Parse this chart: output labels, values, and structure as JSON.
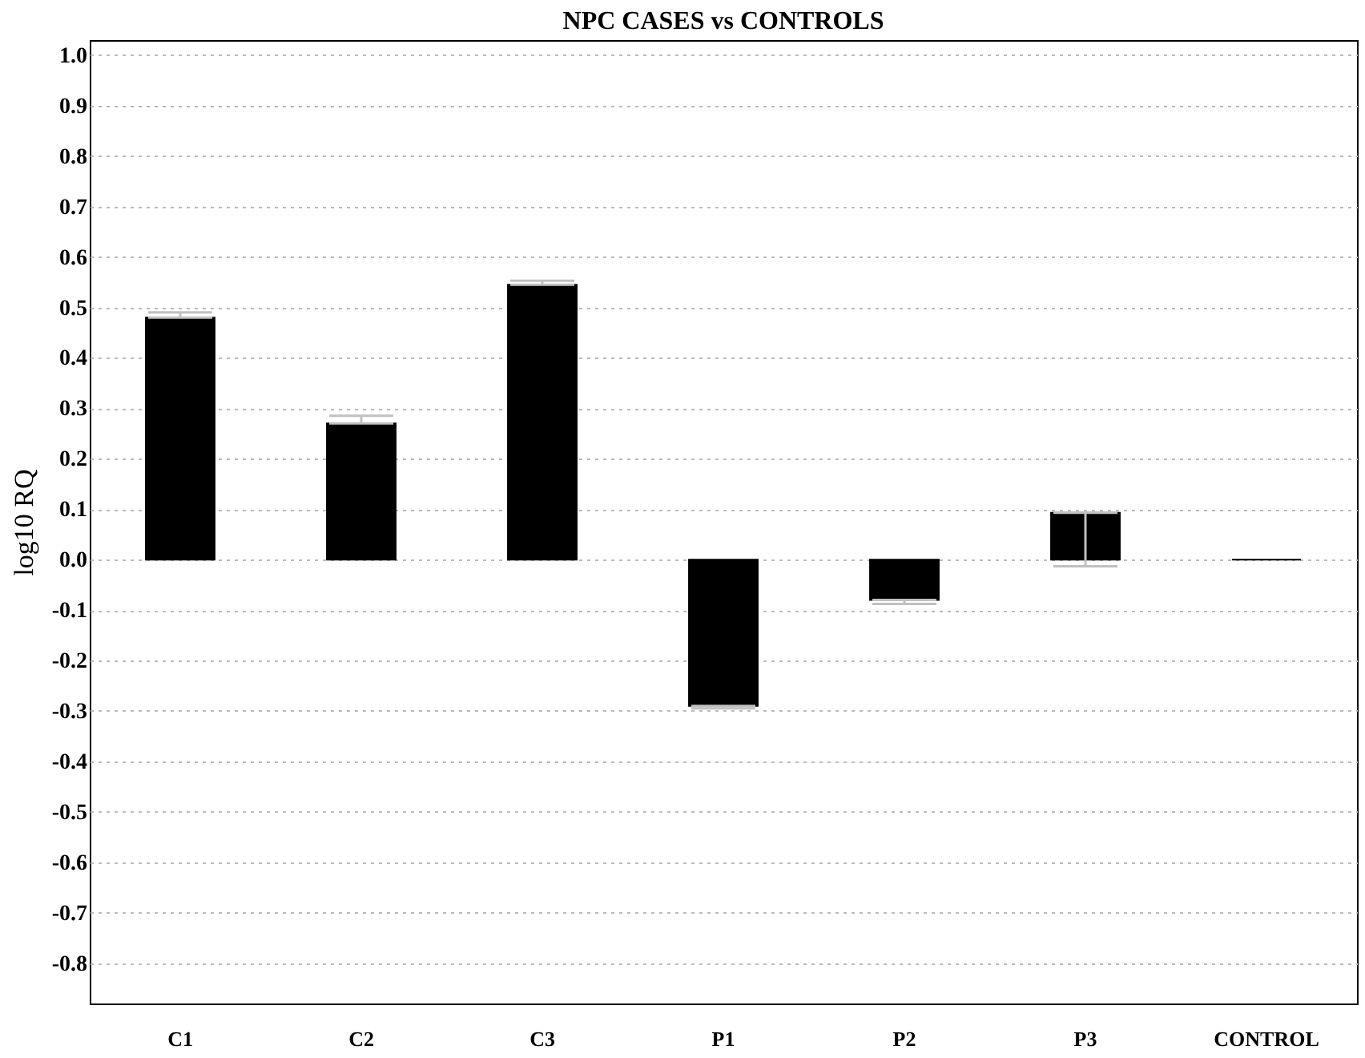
{
  "chart_data": {
    "type": "bar",
    "title": "NPC CASES vs CONTROLS",
    "ylabel": "log10 RQ",
    "categories": [
      "C1",
      "C2",
      "C3",
      "P1",
      "P2",
      "P3",
      "CONTROL"
    ],
    "values": [
      0.48,
      0.27,
      0.545,
      -0.29,
      -0.08,
      0.093,
      0
    ],
    "errors": [
      [
        0.48,
        0.49
      ],
      [
        0.27,
        0.285
      ],
      [
        0.545,
        0.553
      ],
      [
        -0.295,
        -0.29
      ],
      [
        -0.088,
        -0.08
      ],
      [
        -0.013,
        0.093
      ],
      null
    ],
    "color": "#000000",
    "ylim": [
      -0.88,
      1.03
    ],
    "yticks": [
      {
        "value": -0.8,
        "label": "-0.8"
      },
      {
        "value": -0.7,
        "label": "-0.7"
      },
      {
        "value": -0.6,
        "label": "-0.6"
      },
      {
        "value": -0.5,
        "label": "-0.5"
      },
      {
        "value": -0.4,
        "label": "-0.4"
      },
      {
        "value": -0.3,
        "label": "-0.3"
      },
      {
        "value": -0.2,
        "label": "-0.2"
      },
      {
        "value": -0.1,
        "label": "-0.1"
      },
      {
        "value": 0,
        "label": "0.0"
      },
      {
        "value": 0.1,
        "label": "0.1"
      },
      {
        "value": 0.2,
        "label": "0.2"
      },
      {
        "value": 0.3,
        "label": "0.3"
      },
      {
        "value": 0.4,
        "label": "0.4"
      },
      {
        "value": 0.5,
        "label": "0.5"
      },
      {
        "value": 0.6,
        "label": "0.6"
      },
      {
        "value": 0.7,
        "label": "0.7"
      },
      {
        "value": 0.8,
        "label": "0.8"
      },
      {
        "value": 0.9,
        "label": "0.9"
      },
      {
        "value": 1.0,
        "label": "1.0"
      }
    ],
    "grid": "y"
  }
}
